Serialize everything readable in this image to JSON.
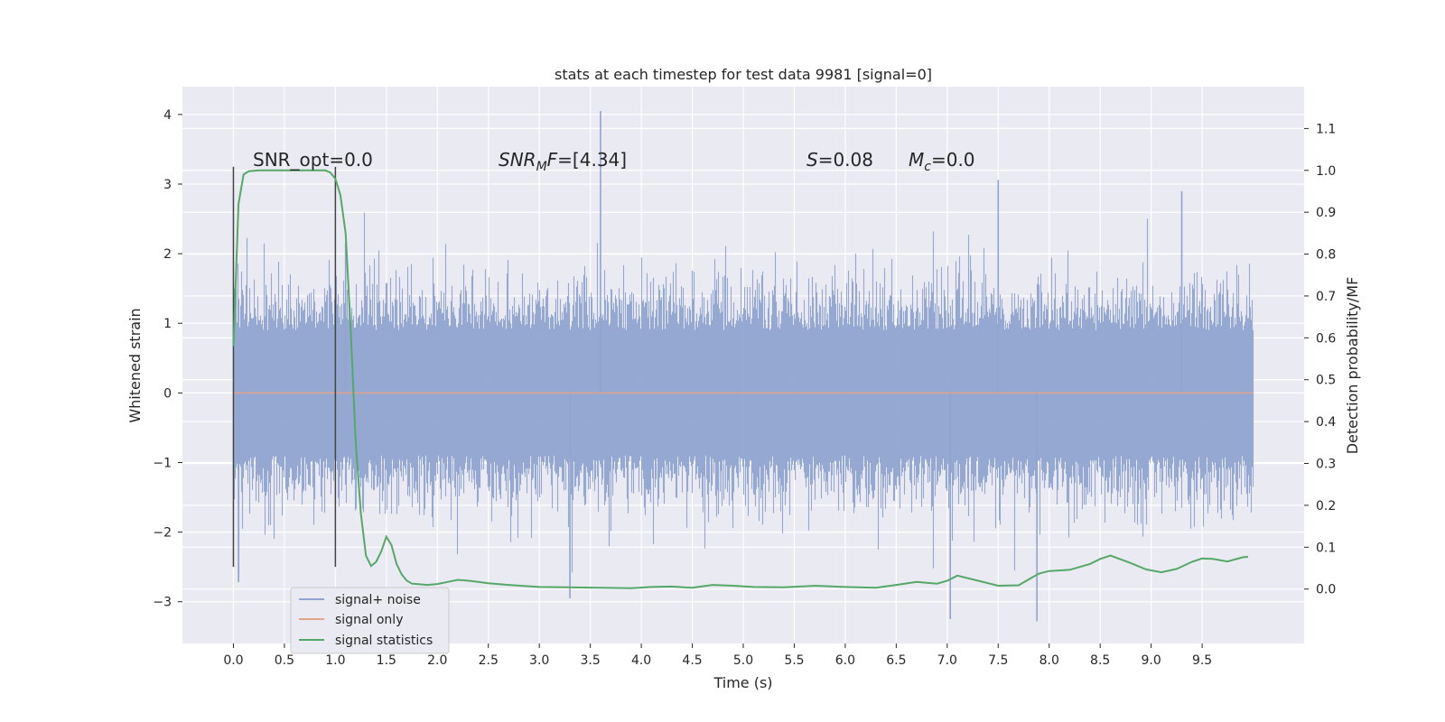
{
  "chart_data": {
    "type": "line",
    "title": "stats at each timestep for test data 9981 [signal=0]",
    "xlabel": "Time (s)",
    "ylabel": "Whitened strain",
    "y2label": "Detection probability/MF",
    "xlim": [
      -0.5,
      10.5
    ],
    "ylim": [
      -3.6,
      4.4
    ],
    "y2lim": [
      -0.13,
      1.2
    ],
    "x_ticks": [
      0.0,
      0.5,
      1.0,
      1.5,
      2.0,
      2.5,
      3.0,
      3.5,
      4.0,
      4.5,
      5.0,
      5.5,
      6.0,
      6.5,
      7.0,
      7.5,
      8.0,
      8.5,
      9.0,
      9.5
    ],
    "x_tick_labels": [
      "0.0",
      "0.5",
      "1.0",
      "1.5",
      "2.0",
      "2.5",
      "3.0",
      "3.5",
      "4.0",
      "4.5",
      "5.0",
      "5.5",
      "6.0",
      "6.5",
      "7.0",
      "7.5",
      "8.0",
      "8.5",
      "9.0",
      "9.5"
    ],
    "y_ticks": [
      -3,
      -2,
      -1,
      0,
      1,
      2,
      3,
      4
    ],
    "y_tick_labels": [
      "−3",
      "−2",
      "−1",
      "0",
      "1",
      "2",
      "3",
      "4"
    ],
    "y2_ticks": [
      0.0,
      0.1,
      0.2,
      0.3,
      0.4,
      0.5,
      0.6,
      0.7,
      0.8,
      0.9,
      1.0,
      1.1
    ],
    "y2_tick_labels": [
      "0.0",
      "0.1",
      "0.2",
      "0.3",
      "0.4",
      "0.5",
      "0.6",
      "0.7",
      "0.8",
      "0.9",
      "1.0",
      "1.1"
    ],
    "grid": true,
    "legend_position": "lower-left",
    "series": [
      {
        "name": "signal+ noise",
        "axis": "left",
        "color": "#8fa4cf",
        "description_type": "dense whitened noise trace from 0.0 to 10.0 s, mostly within ±1.5, peaks to about 4.05 near 3.6 s",
        "x_range": [
          0.0,
          10.0
        ],
        "spikes": [
          {
            "x": 3.6,
            "y": 4.05
          },
          {
            "x": 7.03,
            "y": -3.25
          },
          {
            "x": 7.88,
            "y": -3.28
          },
          {
            "x": 3.3,
            "y": -2.95
          },
          {
            "x": 0.05,
            "y": -2.72
          },
          {
            "x": 7.5,
            "y": 3.06
          },
          {
            "x": 1.1,
            "y": 2.15
          },
          {
            "x": 9.3,
            "y": 2.9
          }
        ]
      },
      {
        "name": "signal only",
        "axis": "left",
        "color": "#e3a48a",
        "x": [
          0.0,
          10.0
        ],
        "y": [
          0.0,
          0.0
        ]
      },
      {
        "name": "signal statistics",
        "axis": "right",
        "color": "#55a868",
        "x": [
          0.0,
          0.05,
          0.1,
          0.15,
          0.25,
          0.4,
          0.6,
          0.8,
          0.9,
          0.95,
          1.0,
          1.05,
          1.1,
          1.15,
          1.2,
          1.25,
          1.3,
          1.35,
          1.4,
          1.45,
          1.5,
          1.55,
          1.6,
          1.65,
          1.7,
          1.75,
          1.8,
          1.9,
          2.0,
          2.1,
          2.2,
          2.3,
          2.4,
          2.5,
          2.7,
          3.0,
          3.3,
          3.6,
          3.9,
          4.1,
          4.3,
          4.5,
          4.7,
          4.9,
          5.1,
          5.4,
          5.7,
          6.0,
          6.3,
          6.5,
          6.7,
          6.9,
          7.0,
          7.1,
          7.3,
          7.5,
          7.7,
          7.9,
          8.0,
          8.2,
          8.4,
          8.5,
          8.6,
          8.8,
          8.95,
          9.1,
          9.25,
          9.4,
          9.5,
          9.6,
          9.75,
          9.9,
          9.95
        ],
        "y": [
          0.58,
          0.92,
          0.99,
          0.998,
          1.0,
          1.0,
          1.0,
          1.0,
          1.0,
          0.995,
          0.98,
          0.94,
          0.85,
          0.62,
          0.35,
          0.18,
          0.08,
          0.055,
          0.065,
          0.09,
          0.125,
          0.105,
          0.06,
          0.035,
          0.02,
          0.013,
          0.012,
          0.01,
          0.012,
          0.017,
          0.022,
          0.02,
          0.017,
          0.014,
          0.01,
          0.005,
          0.004,
          0.003,
          0.002,
          0.005,
          0.006,
          0.003,
          0.01,
          0.008,
          0.005,
          0.004,
          0.008,
          0.005,
          0.003,
          0.01,
          0.017,
          0.013,
          0.02,
          0.032,
          0.02,
          0.008,
          0.009,
          0.037,
          0.043,
          0.046,
          0.06,
          0.072,
          0.08,
          0.062,
          0.047,
          0.04,
          0.048,
          0.065,
          0.073,
          0.072,
          0.066,
          0.076,
          0.077
        ]
      }
    ],
    "vertical_markers": [
      {
        "x": 0.0,
        "y_range": [
          -2.5,
          3.25
        ]
      },
      {
        "x": 1.0,
        "y_range": [
          -2.5,
          3.25
        ]
      }
    ],
    "annotations": {
      "snr_opt": "SNR_opt=0.0",
      "snr_mf_var": "SNR",
      "snr_mf_sub": "M",
      "snr_mf_rest": "F=[4.34]",
      "s_var": "S",
      "s_rest": "=0.08",
      "mc_var": "M",
      "mc_sub": "c",
      "mc_rest": "=0.0"
    }
  }
}
